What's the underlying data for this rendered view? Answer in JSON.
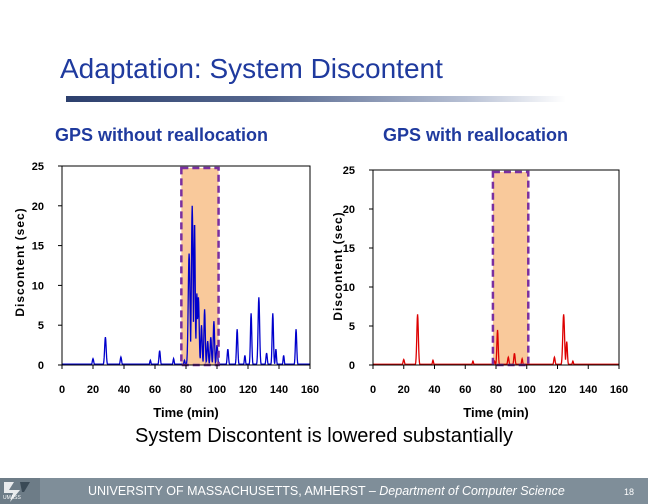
{
  "slide": {
    "title": "Adaptation: System Discontent",
    "subtitle": "System Discontent is lowered substantially",
    "footer_text_prefix": "UNIVERSITY OF MASSACHUSETTS, AMHERST – ",
    "footer_text_dept": "Department of Computer Science",
    "page_number": "18",
    "logo_text": "UMASS"
  },
  "chart_data": [
    {
      "type": "line",
      "title": "GPS without reallocation",
      "xlabel": "Time (min)",
      "ylabel": "Discontent (sec)",
      "xlim": [
        0,
        160
      ],
      "ylim": [
        0,
        25
      ],
      "xticks": [
        0,
        20,
        40,
        60,
        80,
        100,
        120,
        140,
        160
      ],
      "yticks": [
        0,
        5,
        10,
        15,
        20,
        25
      ],
      "series_color": "#0000cc",
      "highlight_range": [
        77,
        101
      ],
      "highlight_fill": "#f9c99b",
      "highlight_border": "#7a2fa0",
      "peaks": [
        {
          "x": 20,
          "y": 0.8,
          "w": 0.6
        },
        {
          "x": 28,
          "y": 3.5,
          "w": 0.7
        },
        {
          "x": 38,
          "y": 1.0,
          "w": 0.6
        },
        {
          "x": 57,
          "y": 0.6,
          "w": 0.5
        },
        {
          "x": 63,
          "y": 1.8,
          "w": 0.6
        },
        {
          "x": 72,
          "y": 0.8,
          "w": 0.5
        },
        {
          "x": 79,
          "y": 0.6,
          "w": 0.5
        },
        {
          "x": 82,
          "y": 14,
          "w": 0.8
        },
        {
          "x": 84,
          "y": 20,
          "w": 0.7
        },
        {
          "x": 85.5,
          "y": 18,
          "w": 0.6
        },
        {
          "x": 87,
          "y": 9,
          "w": 0.6
        },
        {
          "x": 88,
          "y": 8.5,
          "w": 0.7
        },
        {
          "x": 90,
          "y": 5,
          "w": 0.6
        },
        {
          "x": 92,
          "y": 7,
          "w": 0.6
        },
        {
          "x": 94,
          "y": 3,
          "w": 0.6
        },
        {
          "x": 96,
          "y": 3.5,
          "w": 0.6
        },
        {
          "x": 98,
          "y": 5.5,
          "w": 0.6
        },
        {
          "x": 100,
          "y": 2.5,
          "w": 0.6
        },
        {
          "x": 107,
          "y": 2.0,
          "w": 0.6
        },
        {
          "x": 113,
          "y": 4.5,
          "w": 0.6
        },
        {
          "x": 118,
          "y": 1.2,
          "w": 0.5
        },
        {
          "x": 122,
          "y": 6.5,
          "w": 0.6
        },
        {
          "x": 127,
          "y": 8.5,
          "w": 0.7
        },
        {
          "x": 132,
          "y": 1.5,
          "w": 0.6
        },
        {
          "x": 136,
          "y": 6.5,
          "w": 0.6
        },
        {
          "x": 138,
          "y": 2.0,
          "w": 0.5
        },
        {
          "x": 143,
          "y": 1.2,
          "w": 0.5
        },
        {
          "x": 151,
          "y": 4.5,
          "w": 0.6
        }
      ]
    },
    {
      "type": "line",
      "title": "GPS with reallocation",
      "xlabel": "Time (min)",
      "ylabel": "Discontent (sec)",
      "xlim": [
        0,
        160
      ],
      "ylim": [
        0,
        25
      ],
      "xticks": [
        0,
        20,
        40,
        60,
        80,
        100,
        120,
        140,
        160
      ],
      "yticks": [
        0,
        5,
        10,
        15,
        20,
        25
      ],
      "series_color": "#dd0000",
      "highlight_range": [
        78,
        101
      ],
      "highlight_fill": "#f9c99b",
      "highlight_border": "#7a2fa0",
      "peaks": [
        {
          "x": 20,
          "y": 0.7,
          "w": 0.6
        },
        {
          "x": 29,
          "y": 6.5,
          "w": 0.7
        },
        {
          "x": 39,
          "y": 0.6,
          "w": 0.5
        },
        {
          "x": 65,
          "y": 0.5,
          "w": 0.5
        },
        {
          "x": 79,
          "y": 0.5,
          "w": 0.5
        },
        {
          "x": 81,
          "y": 4.5,
          "w": 0.6
        },
        {
          "x": 88,
          "y": 1.0,
          "w": 0.6
        },
        {
          "x": 92,
          "y": 1.5,
          "w": 0.6
        },
        {
          "x": 97,
          "y": 0.8,
          "w": 0.5
        },
        {
          "x": 118,
          "y": 1.0,
          "w": 0.6
        },
        {
          "x": 124,
          "y": 6.5,
          "w": 0.8
        },
        {
          "x": 126,
          "y": 3.0,
          "w": 0.6
        },
        {
          "x": 130,
          "y": 0.5,
          "w": 0.5
        }
      ]
    }
  ]
}
